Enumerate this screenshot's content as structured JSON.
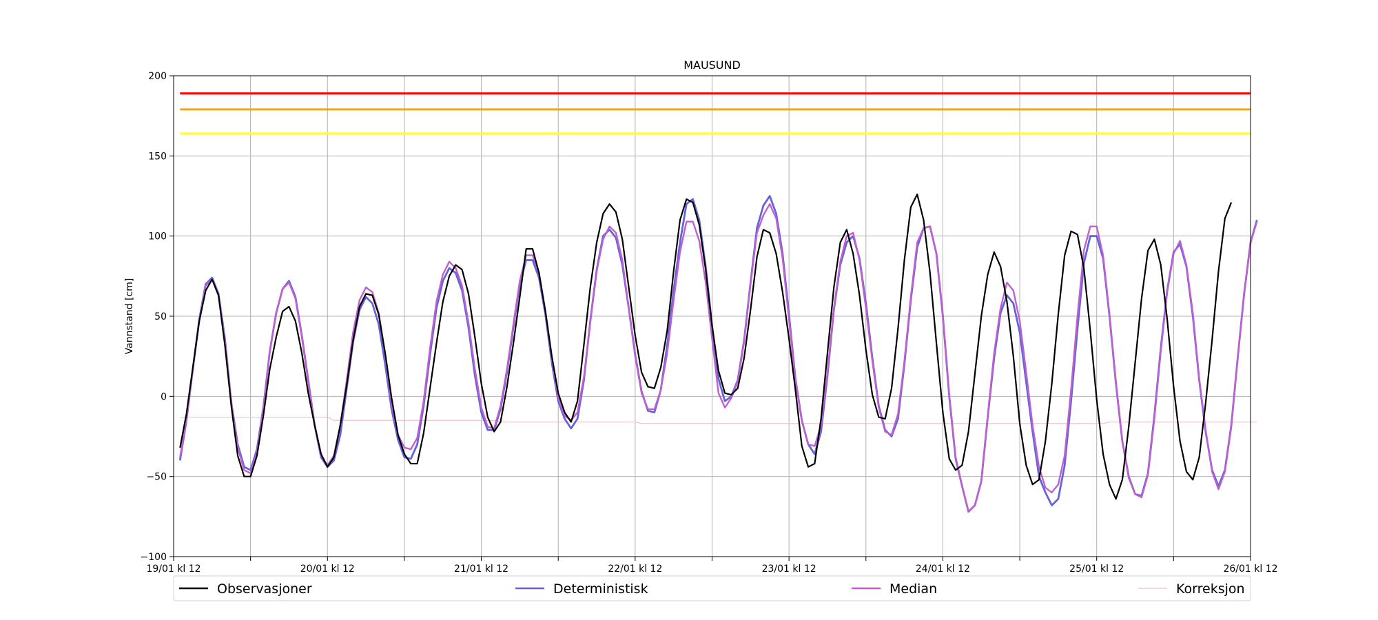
{
  "chart_data": {
    "type": "line",
    "title": "MAUSUND",
    "xlabel": "",
    "ylabel": "Vannstand [cm]",
    "ylim": [
      -100,
      200
    ],
    "yticks": [
      -100,
      -50,
      0,
      50,
      100,
      150,
      200
    ],
    "x_range_hours": [
      0,
      168
    ],
    "xtick_hours": [
      0,
      12,
      24,
      36,
      48,
      60,
      72,
      84,
      96,
      108,
      120,
      132,
      144,
      156,
      168
    ],
    "xtick_labels": [
      "19/01 kl 12",
      "",
      "20/01 kl 12",
      "",
      "21/01 kl 12",
      "",
      "22/01 kl 12",
      "",
      "23/01 kl 12",
      "",
      "24/01 kl 12",
      "",
      "25/01 kl 12",
      "",
      "26/01 kl 12"
    ],
    "grid": true,
    "legend_position": "bottom",
    "x_step_hours": 1,
    "thresholds": [
      {
        "value": 189,
        "color": "#ff0000"
      },
      {
        "value": 179,
        "color": "#ffa500"
      },
      {
        "value": 164,
        "color": "#ffff33"
      }
    ],
    "series": [
      {
        "name": "Observasjoner",
        "color": "#000000",
        "values": [
          -32,
          -11,
          18,
          47,
          66,
          73,
          63,
          32,
          -6,
          -37,
          -50,
          -50,
          -37,
          -12,
          17,
          37,
          53,
          56,
          47,
          27,
          2,
          -18,
          -36,
          -44,
          -38,
          -18,
          7,
          35,
          56,
          64,
          63,
          51,
          27,
          -1,
          -24,
          -36,
          -42,
          -42,
          -23,
          5,
          33,
          59,
          75,
          82,
          79,
          64,
          37,
          8,
          -13,
          -22,
          -16,
          6,
          33,
          62,
          92,
          92,
          77,
          53,
          25,
          2,
          -10,
          -16,
          -3,
          32,
          68,
          96,
          114,
          120,
          115,
          98,
          68,
          38,
          15,
          6,
          5,
          18,
          41,
          78,
          110,
          123,
          121,
          107,
          79,
          44,
          16,
          2,
          1,
          5,
          24,
          54,
          87,
          104,
          102,
          89,
          65,
          36,
          4,
          -31,
          -44,
          -42,
          -14,
          27,
          68,
          96,
          104,
          89,
          63,
          29,
          1,
          -13,
          -14,
          5,
          42,
          85,
          118,
          126,
          110,
          77,
          33,
          -10,
          -39,
          -46,
          -43,
          -22,
          14,
          50,
          76,
          90,
          81,
          59,
          25,
          -17,
          -43,
          -55,
          -52,
          -28,
          8,
          51,
          88,
          103,
          101,
          80,
          41,
          -2,
          -36,
          -55,
          -64,
          -52,
          -19,
          21,
          61,
          91,
          98,
          82,
          48,
          6,
          -28,
          -47,
          -52,
          -38,
          -4,
          35,
          78,
          111,
          121
        ]
      },
      {
        "name": "Deterministisk",
        "color": "#6464d8",
        "values": [
          -40,
          -15,
          17,
          48,
          70,
          74,
          64,
          36,
          -4,
          -30,
          -44,
          -46,
          -33,
          -7,
          28,
          52,
          67,
          72,
          62,
          38,
          10,
          -18,
          -38,
          -44,
          -40,
          -24,
          5,
          34,
          54,
          62,
          58,
          45,
          20,
          -8,
          -27,
          -38,
          -39,
          -30,
          -6,
          26,
          55,
          72,
          80,
          77,
          66,
          43,
          13,
          -10,
          -21,
          -21,
          -8,
          15,
          43,
          70,
          85,
          85,
          74,
          51,
          21,
          -3,
          -14,
          -20,
          -14,
          10,
          47,
          79,
          100,
          104,
          99,
          82,
          55,
          26,
          3,
          -9,
          -10,
          4,
          32,
          66,
          96,
          120,
          123,
          110,
          81,
          44,
          11,
          -3,
          0,
          10,
          35,
          71,
          105,
          119,
          125,
          114,
          89,
          51,
          11,
          -15,
          -30,
          -36,
          -22,
          13,
          54,
          82,
          96,
          100,
          86,
          58,
          24,
          -6,
          -21,
          -25,
          -14,
          20,
          60,
          93,
          105,
          106,
          89,
          50,
          0,
          -39,
          -56,
          -72,
          -68,
          -53,
          -13,
          24,
          52,
          63,
          58,
          40,
          9,
          -22,
          -50,
          -60,
          -68,
          -64,
          -43,
          -3,
          42,
          83,
          100,
          100,
          86,
          50,
          8,
          -28,
          -50,
          -61,
          -62,
          -48,
          -12,
          30,
          66,
          90,
          95,
          81,
          50,
          10,
          -22,
          -46,
          -56,
          -46,
          -18,
          24,
          64,
          96,
          110
        ]
      },
      {
        "name": "Median",
        "color": "#c060d0",
        "values": [
          -38,
          -14,
          17,
          47,
          69,
          73,
          63,
          35,
          -4,
          -32,
          -46,
          -48,
          -35,
          -8,
          28,
          52,
          67,
          71,
          61,
          37,
          9,
          -18,
          -37,
          -43,
          -37,
          -18,
          10,
          40,
          60,
          68,
          65,
          52,
          26,
          -4,
          -24,
          -32,
          -33,
          -26,
          -3,
          30,
          59,
          76,
          84,
          80,
          69,
          46,
          17,
          -7,
          -19,
          -20,
          -6,
          17,
          45,
          72,
          88,
          88,
          77,
          53,
          24,
          -1,
          -12,
          -15,
          -10,
          12,
          46,
          78,
          98,
          106,
          102,
          85,
          55,
          25,
          2,
          -8,
          -8,
          4,
          27,
          60,
          90,
          109,
          109,
          97,
          71,
          36,
          2,
          -7,
          -1,
          9,
          34,
          70,
          102,
          113,
          120,
          111,
          86,
          48,
          10,
          -15,
          -30,
          -31,
          -18,
          15,
          55,
          84,
          100,
          102,
          85,
          55,
          22,
          -7,
          -22,
          -24,
          -11,
          22,
          62,
          96,
          105,
          106,
          89,
          51,
          1,
          -38,
          -56,
          -72,
          -68,
          -53,
          -12,
          27,
          55,
          71,
          66,
          47,
          15,
          -18,
          -44,
          -57,
          -60,
          -55,
          -37,
          4,
          50,
          91,
          106,
          106,
          88,
          51,
          9,
          -28,
          -51,
          -61,
          -63,
          -49,
          -14,
          28,
          65,
          89,
          97,
          82,
          52,
          11,
          -21,
          -47,
          -58,
          -47,
          -19,
          24,
          64,
          96,
          109
        ]
      },
      {
        "name": "Korreksjon",
        "color": "#f0c0c8",
        "values": [
          -13,
          -13,
          -13,
          -13,
          -13,
          -13,
          -13,
          -13,
          -13,
          -13,
          -13,
          -13,
          -13,
          -13,
          -13,
          -13,
          -13,
          -13,
          -13,
          -13,
          -13,
          -13,
          -13,
          -13,
          -15,
          -15,
          -15,
          -15,
          -15,
          -15,
          -15,
          -15,
          -15,
          -15,
          -15,
          -15,
          -15,
          -15,
          -15,
          -15,
          -15,
          -15,
          -15,
          -15,
          -15,
          -15,
          -15,
          -15,
          -15,
          -15,
          -16,
          -16,
          -16,
          -16,
          -16,
          -16,
          -16,
          -16,
          -16,
          -16,
          -16,
          -16,
          -16,
          -16,
          -16,
          -16,
          -16,
          -16,
          -16,
          -16,
          -16,
          -16,
          -17,
          -17,
          -17,
          -17,
          -17,
          -17,
          -17,
          -17,
          -17,
          -17,
          -17,
          -17,
          -17,
          -17,
          -17,
          -17,
          -17,
          -17,
          -17,
          -17,
          -17,
          -17,
          -17,
          -17,
          -17,
          -17,
          -17,
          -17,
          -17,
          -17,
          -17,
          -17,
          -17,
          -17,
          -17,
          -17,
          -17,
          -17,
          -17,
          -17,
          -17,
          -17,
          -17,
          -17,
          -17,
          -17,
          -17,
          -17,
          -17,
          -17,
          -17,
          -17,
          -17,
          -17,
          -17,
          -17,
          -17,
          -17,
          -17,
          -17,
          -17,
          -17,
          -17,
          -17,
          -17,
          -17,
          -17,
          -17,
          -17,
          -17,
          -17,
          -17,
          -17,
          -16,
          -16,
          -16,
          -16,
          -16,
          -16,
          -16,
          -16,
          -16,
          -16,
          -16,
          -16,
          -16,
          -16,
          -16,
          -16,
          -16,
          -16,
          -16,
          -16,
          -16,
          -16,
          -16,
          -16
        ]
      }
    ]
  }
}
